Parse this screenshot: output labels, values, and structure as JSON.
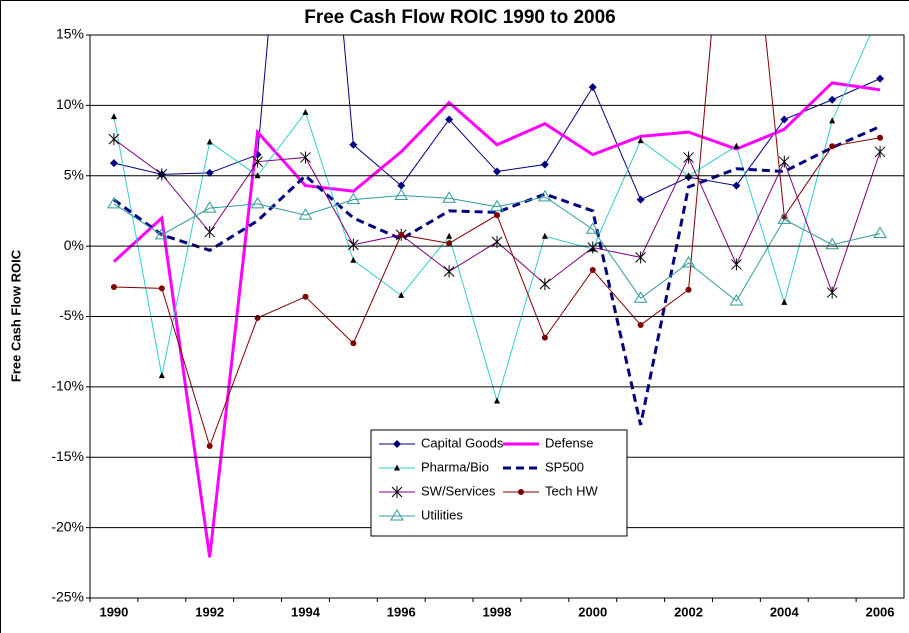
{
  "chart_data": {
    "type": "line",
    "title": "Free Cash Flow ROIC 1990 to 2006",
    "y_label": "Free Cash Flow ROIC",
    "categories": [
      "1990",
      null,
      "1992",
      null,
      "1994",
      null,
      "1996",
      null,
      "1998",
      null,
      "2000",
      null,
      "2002",
      null,
      "2004",
      null,
      "2006"
    ],
    "ylim": [
      -25,
      15
    ],
    "yticks": [
      {
        "value": -25,
        "label": "-25%"
      },
      {
        "value": -20,
        "label": "-20%"
      },
      {
        "value": -15,
        "label": "-15%"
      },
      {
        "value": -10,
        "label": "-10%"
      },
      {
        "value": -5,
        "label": "-5%"
      },
      {
        "value": 0,
        "label": "0%"
      },
      {
        "value": 5,
        "label": "5%"
      },
      {
        "value": 10,
        "label": "10%"
      },
      {
        "value": 15,
        "label": "15%"
      }
    ],
    "grid": true,
    "legend": "lower center",
    "series": [
      {
        "name": "Capital Goods",
        "color": "#000080",
        "marker": "diamond",
        "values": [
          5.9,
          5.1,
          5.2,
          6.5,
          45,
          7.2,
          4.3,
          9.0,
          5.3,
          5.8,
          11.3,
          3.3,
          4.9,
          4.3,
          9.0,
          10.4,
          11.9
        ]
      },
      {
        "name": "Defense",
        "color": "#ff00ff",
        "marker": "none",
        "width": 3,
        "values": [
          -1.1,
          2.0,
          -22.1,
          8.1,
          4.3,
          3.9,
          6.7,
          10.2,
          7.2,
          8.7,
          6.5,
          7.8,
          8.1,
          6.9,
          8.3,
          11.6,
          11.1
        ]
      },
      {
        "name": "Pharma/Bio",
        "color": "#33cccc",
        "marker": "triangle",
        "values": [
          9.2,
          -9.2,
          7.4,
          5.0,
          9.5,
          -1.0,
          -3.5,
          0.7,
          -11.0,
          0.7,
          -0.2,
          7.5,
          5.0,
          7.1,
          -4.0,
          8.9,
          16.6
        ]
      },
      {
        "name": "SP500",
        "color": "#000080",
        "marker": "none",
        "width": 3,
        "dashed": true,
        "values": [
          3.3,
          0.8,
          -0.3,
          1.8,
          5.0,
          2.0,
          0.5,
          2.5,
          2.4,
          3.7,
          2.5,
          -12.7,
          4.2,
          5.5,
          5.3,
          7.0,
          8.5
        ]
      },
      {
        "name": "SW/Services",
        "color": "#800080",
        "marker": "star",
        "values": [
          7.6,
          5.1,
          1.0,
          6.0,
          6.3,
          0.1,
          0.8,
          -1.8,
          0.3,
          -2.7,
          -0.1,
          -0.8,
          6.3,
          -1.3,
          6.0,
          -3.3,
          6.7
        ]
      },
      {
        "name": "Tech HW",
        "color": "#800000",
        "marker": "circle",
        "values": [
          -2.9,
          -3.0,
          -14.2,
          -5.1,
          -3.6,
          -6.9,
          0.8,
          0.2,
          2.2,
          -6.5,
          -1.7,
          -5.6,
          -3.1,
          35,
          2.1,
          7.1,
          7.7
        ]
      },
      {
        "name": "Utilities",
        "color": "#339999",
        "marker": "hollow-triangle",
        "values": [
          3.0,
          0.8,
          2.7,
          3.0,
          2.2,
          3.3,
          3.6,
          3.4,
          2.8,
          3.5,
          1.2,
          -3.7,
          -1.2,
          -3.9,
          1.9,
          0.1,
          0.9
        ]
      }
    ]
  }
}
